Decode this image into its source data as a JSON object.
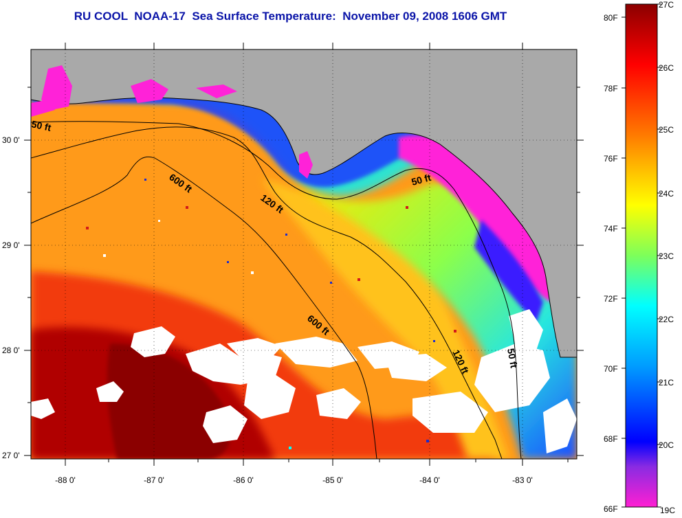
{
  "title": "RU COOL  NOAA-17  Sea Surface Temperature:  November 09, 2008 1606 GMT",
  "map": {
    "lat_ticks": [
      "30 0'",
      "29 0'",
      "28 0'",
      "27 0'"
    ],
    "lon_ticks": [
      "-88 0'",
      "-87 0'",
      "-86 0'",
      "-85 0'",
      "-84 0'",
      "-83 0'"
    ],
    "contours": [
      {
        "label": "50 ft"
      },
      {
        "label": "600 ft"
      },
      {
        "label": "120 ft"
      },
      {
        "label": "50 ft"
      },
      {
        "label": "600 ft"
      },
      {
        "label": "120 ft"
      },
      {
        "label": "50 ft"
      }
    ],
    "colors": {
      "land": "#a9a9a9",
      "cloud": "#ffffff",
      "coastline": "#000000"
    }
  },
  "colorbar": {
    "fahrenheit_labels": [
      "80F",
      "78F",
      "76F",
      "74F",
      "72F",
      "70F",
      "68F",
      "66F"
    ],
    "celsius_labels": [
      "27C",
      "26C",
      "25C",
      "24C",
      "23C",
      "22C",
      "21C",
      "20C",
      "19C"
    ],
    "range_c": [
      19,
      27
    ],
    "stops": [
      "#8b0000",
      "#ff0000",
      "#ff7a00",
      "#ffc800",
      "#ffff00",
      "#7dff5a",
      "#00ffff",
      "#009cff",
      "#0000ff",
      "#8a2be2",
      "#ff1fd2"
    ]
  }
}
